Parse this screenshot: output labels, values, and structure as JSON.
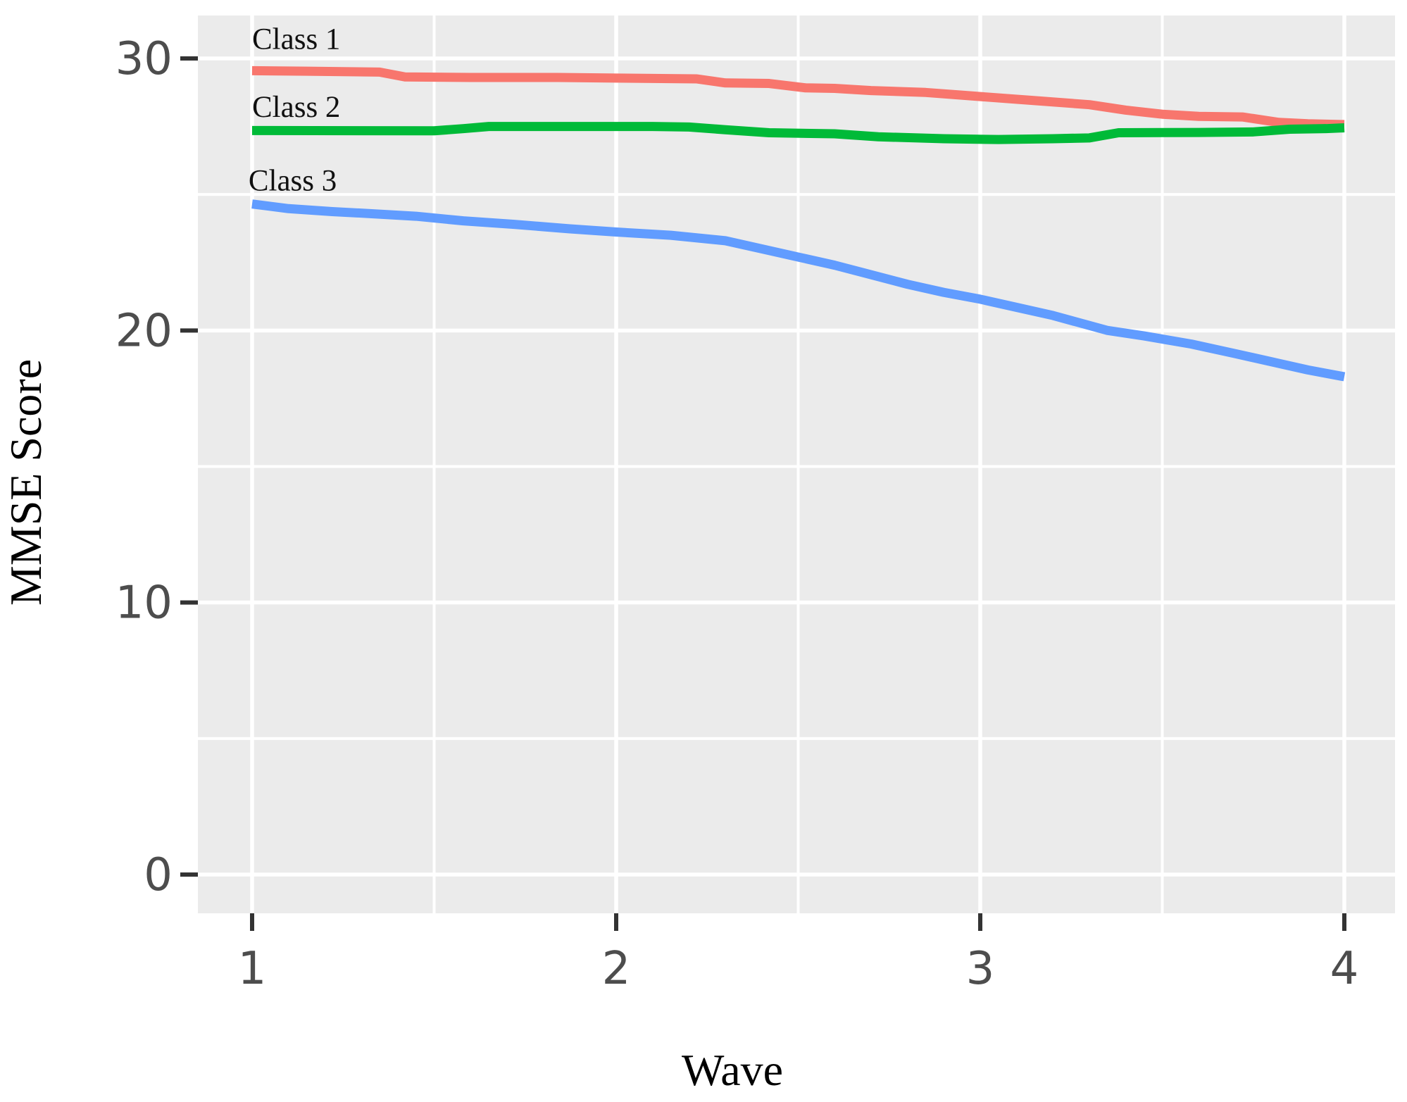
{
  "chart_data": {
    "type": "line",
    "title": "",
    "xlabel": "Wave",
    "ylabel": "MMSE Score",
    "x_tick_labels": [
      "1",
      "2",
      "3",
      "4"
    ],
    "x_ticks": [
      1,
      2,
      3,
      4
    ],
    "y_tick_labels": [
      "0",
      "10",
      "20",
      "30"
    ],
    "y_ticks": [
      0,
      10,
      20,
      30
    ],
    "x_minor_gridlines": [
      1.5,
      2.5,
      3.5
    ],
    "y_minor_gridlines": [
      5,
      15,
      25
    ],
    "xlim": [
      0.851,
      4.139
    ],
    "ylim": [
      -1.42,
      31.58
    ],
    "grid": true,
    "legend_position": "none",
    "panel_background": "#EBEBEB",
    "gridline_color": "#FFFFFF",
    "tick_mark_color": "#333333",
    "tick_label_color": "#4D4D4D",
    "axis_title_color": "#000000",
    "line_width": 13,
    "series": [
      {
        "name": "Class 1",
        "color": "#F8766D",
        "points": [
          [
            1.0,
            29.55
          ],
          [
            1.15,
            29.53
          ],
          [
            1.35,
            29.5
          ],
          [
            1.42,
            29.32
          ],
          [
            1.6,
            29.3
          ],
          [
            1.84,
            29.3
          ],
          [
            2.0,
            29.28
          ],
          [
            2.22,
            29.25
          ],
          [
            2.3,
            29.1
          ],
          [
            2.42,
            29.08
          ],
          [
            2.52,
            28.92
          ],
          [
            2.6,
            28.9
          ],
          [
            2.7,
            28.82
          ],
          [
            2.85,
            28.75
          ],
          [
            3.0,
            28.6
          ],
          [
            3.15,
            28.45
          ],
          [
            3.3,
            28.3
          ],
          [
            3.4,
            28.1
          ],
          [
            3.5,
            27.95
          ],
          [
            3.6,
            27.87
          ],
          [
            3.72,
            27.85
          ],
          [
            3.82,
            27.65
          ],
          [
            3.9,
            27.6
          ],
          [
            4.0,
            27.57
          ]
        ]
      },
      {
        "name": "Class 2",
        "color": "#00BA38",
        "points": [
          [
            1.0,
            27.35
          ],
          [
            1.5,
            27.34
          ],
          [
            1.58,
            27.42
          ],
          [
            1.65,
            27.5
          ],
          [
            2.1,
            27.5
          ],
          [
            2.2,
            27.48
          ],
          [
            2.3,
            27.38
          ],
          [
            2.42,
            27.27
          ],
          [
            2.6,
            27.23
          ],
          [
            2.72,
            27.12
          ],
          [
            2.9,
            27.05
          ],
          [
            3.05,
            27.02
          ],
          [
            3.2,
            27.05
          ],
          [
            3.3,
            27.08
          ],
          [
            3.38,
            27.27
          ],
          [
            3.6,
            27.28
          ],
          [
            3.75,
            27.3
          ],
          [
            3.85,
            27.4
          ],
          [
            3.95,
            27.42
          ],
          [
            4.0,
            27.45
          ]
        ]
      },
      {
        "name": "Class 3",
        "color": "#619CFF",
        "points": [
          [
            1.0,
            24.65
          ],
          [
            1.1,
            24.48
          ],
          [
            1.22,
            24.37
          ],
          [
            1.32,
            24.3
          ],
          [
            1.45,
            24.2
          ],
          [
            1.58,
            24.03
          ],
          [
            1.72,
            23.9
          ],
          [
            1.87,
            23.74
          ],
          [
            2.0,
            23.62
          ],
          [
            2.15,
            23.5
          ],
          [
            2.3,
            23.3
          ],
          [
            2.4,
            23.0
          ],
          [
            2.5,
            22.7
          ],
          [
            2.6,
            22.4
          ],
          [
            2.7,
            22.05
          ],
          [
            2.8,
            21.7
          ],
          [
            2.9,
            21.4
          ],
          [
            3.0,
            21.15
          ],
          [
            3.1,
            20.85
          ],
          [
            3.2,
            20.55
          ],
          [
            3.35,
            20.0
          ],
          [
            3.45,
            19.8
          ],
          [
            3.58,
            19.5
          ],
          [
            3.7,
            19.15
          ],
          [
            3.8,
            18.85
          ],
          [
            3.9,
            18.55
          ],
          [
            4.0,
            18.3
          ]
        ]
      }
    ],
    "annotations": [
      {
        "text": "Class 1",
        "x": 1.0,
        "y": 30.35
      },
      {
        "text": "Class 2",
        "x": 1.0,
        "y": 27.85
      },
      {
        "text": "Class 3",
        "x": 0.99,
        "y": 25.15
      }
    ]
  }
}
